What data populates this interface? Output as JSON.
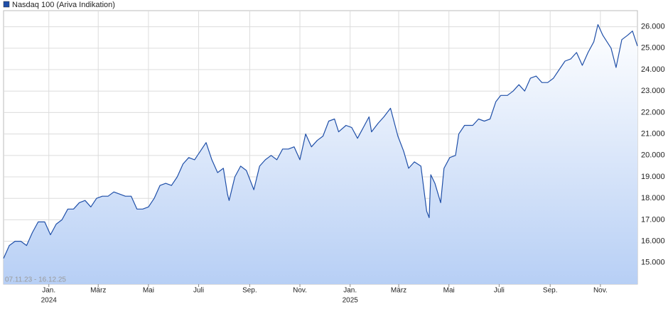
{
  "chart_data": {
    "type": "line",
    "date_range": "07.11.23 - 16.12.25",
    "xlim": [
      "2023-11-07",
      "2025-12-16"
    ],
    "ylim": [
      14000,
      26750
    ],
    "grid": true,
    "area": true,
    "y_axis_side": "right",
    "legend": "top-left",
    "yticks": [
      {
        "value": 15000,
        "label": "15.000"
      },
      {
        "value": 16000,
        "label": "16.000"
      },
      {
        "value": 17000,
        "label": "17.000"
      },
      {
        "value": 18000,
        "label": "18.000"
      },
      {
        "value": 19000,
        "label": "19.000"
      },
      {
        "value": 20000,
        "label": "20.000"
      },
      {
        "value": 21000,
        "label": "21.000"
      },
      {
        "value": 22000,
        "label": "22.000"
      },
      {
        "value": 23000,
        "label": "23.000"
      },
      {
        "value": 24000,
        "label": "24.000"
      },
      {
        "value": 25000,
        "label": "25.000"
      },
      {
        "value": 26000,
        "label": "26.000"
      }
    ],
    "xticks": [
      {
        "value": "2024-01-01",
        "label": "Jan."
      },
      {
        "value": "2024-03-01",
        "label": "März"
      },
      {
        "value": "2024-05-01",
        "label": "Mai"
      },
      {
        "value": "2024-07-01",
        "label": "Juli"
      },
      {
        "value": "2024-09-01",
        "label": "Sep."
      },
      {
        "value": "2024-11-01",
        "label": "Nov."
      },
      {
        "value": "2025-01-01",
        "label": "Jan."
      },
      {
        "value": "2025-03-01",
        "label": "März"
      },
      {
        "value": "2025-05-01",
        "label": "Mai"
      },
      {
        "value": "2025-07-01",
        "label": "Juli"
      },
      {
        "value": "2025-09-01",
        "label": "Sep."
      },
      {
        "value": "2025-11-01",
        "label": "Nov."
      }
    ],
    "x_year_labels": [
      {
        "value": "2024-01-01",
        "label": "2024"
      },
      {
        "value": "2025-01-01",
        "label": "2025"
      }
    ],
    "x": [
      "2023-11-07",
      "2023-11-14",
      "2023-11-21",
      "2023-11-28",
      "2023-12-05",
      "2023-12-12",
      "2023-12-19",
      "2023-12-27",
      "2024-01-03",
      "2024-01-10",
      "2024-01-17",
      "2024-01-24",
      "2024-01-31",
      "2024-02-07",
      "2024-02-14",
      "2024-02-21",
      "2024-02-28",
      "2024-03-06",
      "2024-03-13",
      "2024-03-20",
      "2024-03-27",
      "2024-04-03",
      "2024-04-10",
      "2024-04-17",
      "2024-04-24",
      "2024-05-01",
      "2024-05-08",
      "2024-05-15",
      "2024-05-22",
      "2024-05-29",
      "2024-06-05",
      "2024-06-12",
      "2024-06-19",
      "2024-06-26",
      "2024-07-03",
      "2024-07-10",
      "2024-07-17",
      "2024-07-24",
      "2024-07-31",
      "2024-08-05",
      "2024-08-07",
      "2024-08-14",
      "2024-08-21",
      "2024-08-28",
      "2024-09-06",
      "2024-09-13",
      "2024-09-20",
      "2024-09-27",
      "2024-10-04",
      "2024-10-11",
      "2024-10-18",
      "2024-10-25",
      "2024-11-01",
      "2024-11-08",
      "2024-11-15",
      "2024-11-22",
      "2024-11-29",
      "2024-12-06",
      "2024-12-13",
      "2024-12-18",
      "2024-12-27",
      "2025-01-03",
      "2025-01-10",
      "2025-01-17",
      "2025-01-24",
      "2025-01-27",
      "2025-02-04",
      "2025-02-11",
      "2025-02-19",
      "2025-02-28",
      "2025-03-07",
      "2025-03-13",
      "2025-03-20",
      "2025-03-28",
      "2025-04-04",
      "2025-04-07",
      "2025-04-09",
      "2025-04-14",
      "2025-04-21",
      "2025-04-25",
      "2025-05-02",
      "2025-05-09",
      "2025-05-13",
      "2025-05-20",
      "2025-05-30",
      "2025-06-06",
      "2025-06-13",
      "2025-06-20",
      "2025-06-27",
      "2025-07-03",
      "2025-07-11",
      "2025-07-18",
      "2025-07-25",
      "2025-08-01",
      "2025-08-08",
      "2025-08-15",
      "2025-08-22",
      "2025-08-29",
      "2025-09-05",
      "2025-09-12",
      "2025-09-19",
      "2025-09-26",
      "2025-10-03",
      "2025-10-10",
      "2025-10-17",
      "2025-10-24",
      "2025-10-29",
      "2025-11-04",
      "2025-11-14",
      "2025-11-20",
      "2025-11-27",
      "2025-12-04",
      "2025-12-10",
      "2025-12-16"
    ],
    "series": [
      {
        "name": "Nasdaq 100 (Ariva Indikation)",
        "color": "#1f4fa8",
        "values": [
          15200,
          15800,
          16000,
          16000,
          15800,
          16400,
          16900,
          16900,
          16300,
          16800,
          17000,
          17500,
          17500,
          17800,
          17900,
          17600,
          18000,
          18100,
          18100,
          18300,
          18200,
          18100,
          18100,
          17500,
          17500,
          17600,
          18000,
          18600,
          18700,
          18600,
          19000,
          19600,
          19900,
          19800,
          20200,
          20600,
          19800,
          19200,
          19400,
          18200,
          17900,
          19000,
          19500,
          19300,
          18400,
          19500,
          19800,
          20000,
          19800,
          20300,
          20300,
          20400,
          19800,
          21000,
          20400,
          20700,
          20900,
          21600,
          21700,
          21100,
          21400,
          21300,
          20800,
          21300,
          21800,
          21100,
          21500,
          21800,
          22200,
          20900,
          20200,
          19400,
          19700,
          19500,
          17400,
          17100,
          19100,
          18700,
          17800,
          19400,
          19900,
          20000,
          21000,
          21400,
          21400,
          21700,
          21600,
          21700,
          22500,
          22800,
          22800,
          23000,
          23300,
          23000,
          23600,
          23700,
          23400,
          23400,
          23600,
          24000,
          24400,
          24500,
          24800,
          24200,
          24800,
          25300,
          26100,
          25600,
          25000,
          24100,
          25400,
          25600,
          25800,
          25100
        ]
      }
    ]
  }
}
